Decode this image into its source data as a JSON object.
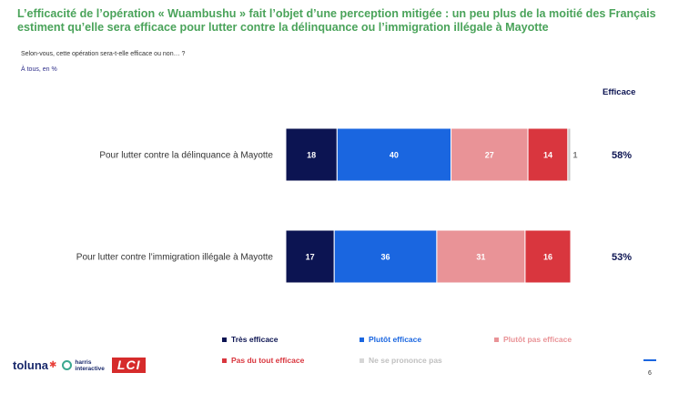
{
  "title": "L’efficacité de l’opération « Wuambushu » fait l’objet d’une perception mitigée : un peu plus de la moitié des Français estiment qu’elle sera efficace pour lutter contre la délinquance ou l’immigration illégale à Mayotte",
  "question": "Selon-vous, cette opération sera-t-elle efficace ou non… ?",
  "base": "À tous, en %",
  "efficace_header": "Efficace",
  "colors": {
    "tres_efficace": "#0c1452",
    "plutot_efficace": "#1a66e0",
    "plutot_pas_efficace": "#e99397",
    "pas_du_tout_efficace": "#d9363e",
    "ne_se_prononce_pas": "#c8c8c8",
    "title": "#4aa35a"
  },
  "chart_data": {
    "type": "bar",
    "orientation": "horizontal",
    "stacked": true,
    "xlim": [
      0,
      100
    ],
    "categories": [
      "Pour lutter contre la délinquance à Mayotte",
      "Pour lutter contre l’immigration illégale à Mayotte"
    ],
    "series": [
      {
        "name": "Très efficace",
        "values": [
          18,
          17
        ]
      },
      {
        "name": "Plutôt efficace",
        "values": [
          40,
          36
        ]
      },
      {
        "name": "Plutôt pas efficace",
        "values": [
          27,
          31
        ]
      },
      {
        "name": "Pas du tout efficace",
        "values": [
          14,
          16
        ]
      },
      {
        "name": "Ne se prononce pas",
        "values": [
          1,
          0
        ]
      }
    ],
    "efficace_totals": [
      "58%",
      "53%"
    ],
    "legend_position": "bottom"
  },
  "footer": {
    "toluna": "toluna",
    "harris_line1": "harris",
    "harris_line2": "interactive",
    "lci": "LCI",
    "page_number": "6"
  }
}
